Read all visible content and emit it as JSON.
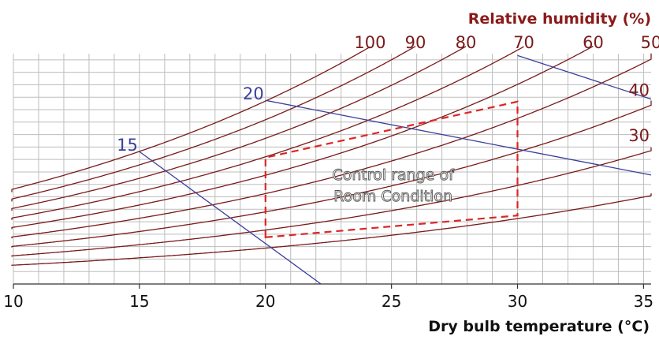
{
  "chart_data": {
    "type": "line",
    "title": "",
    "xlabel": "Dry bulb temperature (°C)",
    "rh_axis_title": "Relative humidity (%)",
    "xlim": [
      10,
      35.3
    ],
    "ylim": [
      0,
      0.0185
    ],
    "x_ticks": [
      "10",
      "15",
      "20",
      "25",
      "30",
      "35"
    ],
    "grid": true,
    "colors": {
      "rh": "#7a1a1a",
      "wet_bulb": "#3a3f9a",
      "control_range": "#e02424",
      "grid": "#bdbdbd",
      "axis_title": "#8b1a1a"
    },
    "rh_series": [
      {
        "name": "100",
        "rh": 100,
        "label_pos": "top"
      },
      {
        "name": "90",
        "rh": 90,
        "label_pos": "top"
      },
      {
        "name": "80",
        "rh": 80,
        "label_pos": "top"
      },
      {
        "name": "70",
        "rh": 70,
        "label_pos": "top"
      },
      {
        "name": "60",
        "rh": 60,
        "label_pos": "top"
      },
      {
        "name": "50",
        "rh": 50,
        "label_pos": "top"
      },
      {
        "name": "40",
        "rh": 40,
        "label_pos": "right"
      },
      {
        "name": "30",
        "rh": 30,
        "label_pos": "right"
      },
      {
        "name": "",
        "rh": 20,
        "label_pos": "none"
      }
    ],
    "wet_bulb_lines": [
      {
        "name": "15",
        "x": [
          15,
          22.2
        ],
        "y": [
          0.01063,
          0.0
        ]
      },
      {
        "name": "20",
        "x": [
          20,
          35.3
        ],
        "y": [
          0.01475,
          0.00875
        ]
      },
      {
        "name": "",
        "x": [
          30,
          35.3
        ],
        "y": [
          0.01835,
          0.01485
        ]
      }
    ],
    "control_range": {
      "label_lines": [
        "Control range of",
        "Room Condition"
      ],
      "points": [
        {
          "x": 20,
          "y": 0.00375
        },
        {
          "x": 30,
          "y": 0.0055
        },
        {
          "x": 30,
          "y": 0.01465
        },
        {
          "x": 20,
          "y": 0.01015
        }
      ]
    }
  }
}
